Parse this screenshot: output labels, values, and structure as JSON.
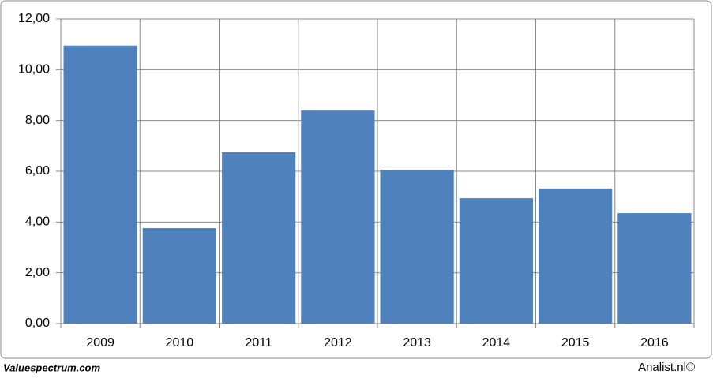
{
  "chart_data": {
    "type": "bar",
    "categories": [
      "2009",
      "2010",
      "2011",
      "2012",
      "2013",
      "2014",
      "2015",
      "2016"
    ],
    "values": [
      10.95,
      3.76,
      6.75,
      8.39,
      6.06,
      4.94,
      5.32,
      4.35
    ],
    "color": "#4f81bd",
    "ylim": [
      0,
      12
    ],
    "yticks": [
      {
        "value": 0,
        "label": "0,00"
      },
      {
        "value": 2,
        "label": "2,00"
      },
      {
        "value": 4,
        "label": "4,00"
      },
      {
        "value": 6,
        "label": "6,00"
      },
      {
        "value": 8,
        "label": "8,00"
      },
      {
        "value": 10,
        "label": "10,00"
      },
      {
        "value": 12,
        "label": "12,00"
      }
    ],
    "grid": true,
    "credits": [
      "Valuespectrum.com",
      "Analist.nl©"
    ]
  }
}
